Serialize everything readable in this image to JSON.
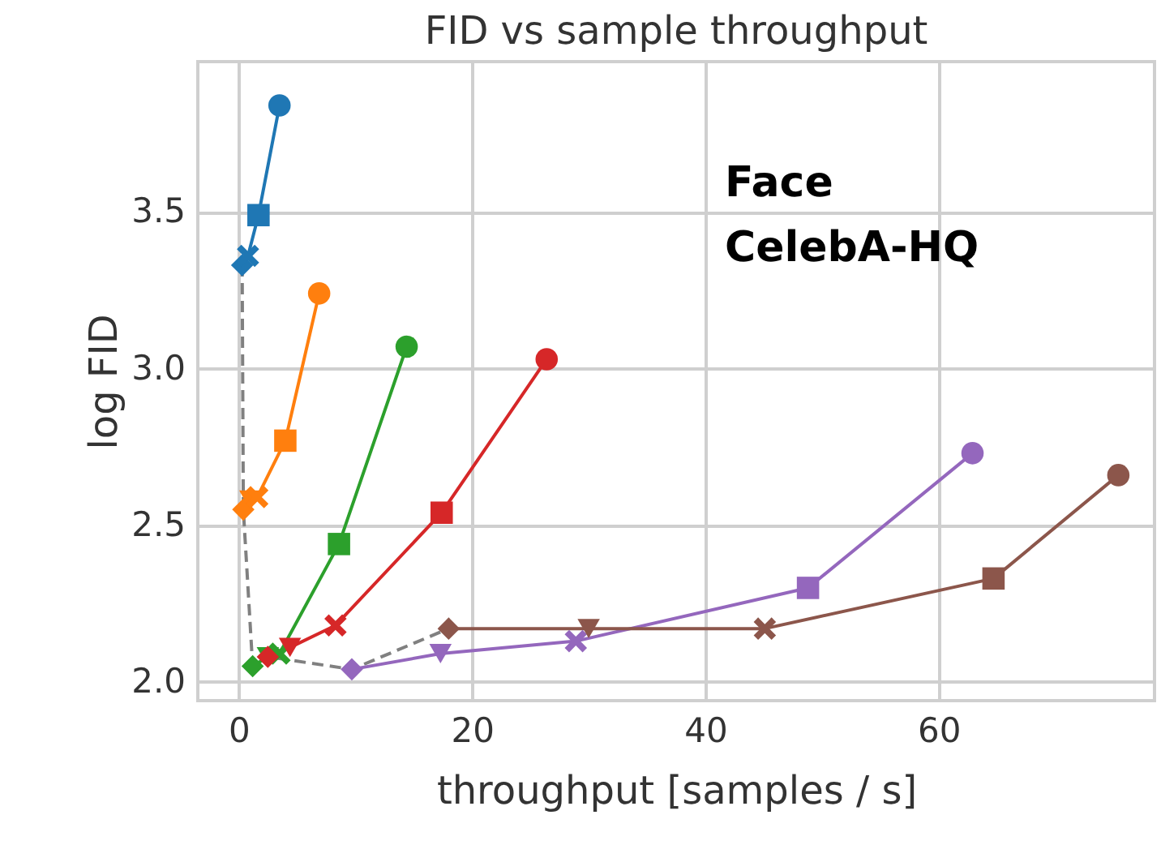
{
  "chart_data": {
    "type": "line",
    "title": "FID vs sample throughput",
    "xlabel": "throughput [samples / s]",
    "ylabel": "log FID",
    "annotations": [
      "Face\nCelebA-HQ"
    ],
    "xlim": [
      -3.5,
      78.5
    ],
    "ylim": [
      1.94,
      3.98
    ],
    "xticks": [
      0,
      20,
      40,
      60
    ],
    "yticks": [
      {
        "value": 2,
        "label": "2.0"
      },
      {
        "value": 2.5,
        "label": "2.5"
      },
      {
        "value": 3,
        "label": "3.0"
      },
      {
        "value": 3.5,
        "label": "3.5"
      }
    ],
    "grid": true,
    "legend": false,
    "series": [
      {
        "color": "#808080",
        "line_style": "dashed",
        "marker": "none",
        "x": [
          0.3,
          0.4,
          1.2,
          2.5,
          9.7,
          18.0
        ],
        "values": [
          3.33,
          2.55,
          2.05,
          2.08,
          2.04,
          2.17
        ]
      },
      {
        "color": "#1f77b4",
        "line_style": "solid",
        "marker": [
          "diamond",
          "cross",
          "square",
          "circle"
        ],
        "x": [
          0.3,
          0.8,
          1.7,
          3.5
        ],
        "values": [
          3.33,
          3.36,
          3.49,
          3.84
        ]
      },
      {
        "color": "#ff7f0e",
        "line_style": "solid",
        "marker": [
          "diamond",
          "triangle_down",
          "cross",
          "square",
          "circle"
        ],
        "x": [
          0.4,
          1.0,
          1.6,
          4.0,
          6.9
        ],
        "values": [
          2.55,
          2.58,
          2.59,
          2.77,
          3.24
        ]
      },
      {
        "color": "#2ca02c",
        "line_style": "solid",
        "marker": [
          "diamond",
          "triangle_down",
          "cross",
          "square",
          "circle"
        ],
        "x": [
          1.2,
          2.5,
          3.5,
          8.6,
          14.4
        ],
        "values": [
          2.05,
          2.08,
          2.09,
          2.44,
          3.07
        ]
      },
      {
        "color": "#d62728",
        "line_style": "solid",
        "marker": [
          "diamond",
          "triangle_down",
          "cross",
          "square",
          "circle"
        ],
        "x": [
          2.5,
          4.4,
          8.3,
          17.4,
          26.4
        ],
        "values": [
          2.08,
          2.11,
          2.18,
          2.54,
          3.03
        ]
      },
      {
        "color": "#9467bd",
        "line_style": "solid",
        "marker": [
          "diamond",
          "triangle_down",
          "cross",
          "square",
          "circle"
        ],
        "x": [
          9.7,
          17.3,
          28.9,
          48.8,
          62.9
        ],
        "values": [
          2.04,
          2.09,
          2.13,
          2.3,
          2.73
        ]
      },
      {
        "color": "#8c564b",
        "line_style": "solid",
        "marker": [
          "diamond",
          "triangle_down",
          "cross",
          "square",
          "circle"
        ],
        "x": [
          18.0,
          30.0,
          45.1,
          64.7,
          75.4
        ],
        "values": [
          2.17,
          2.17,
          2.17,
          2.33,
          2.66
        ]
      }
    ]
  }
}
